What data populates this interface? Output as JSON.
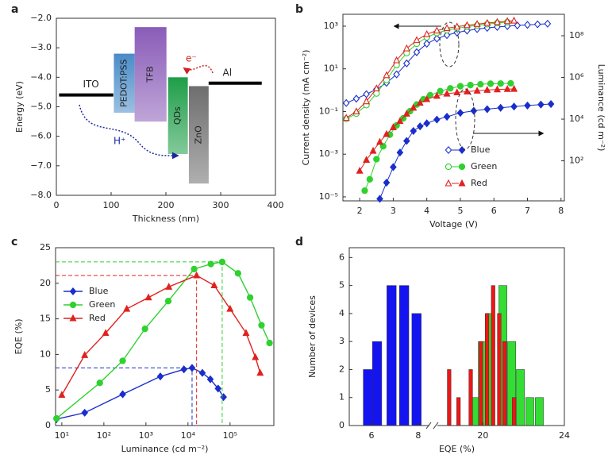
{
  "chart_data": [
    {
      "type": "energy-diagram",
      "panel": "a",
      "xlabel": "Thickness (nm)",
      "ylabel": "Energy (eV)",
      "xlim": [
        0,
        400
      ],
      "xticks": [
        0,
        100,
        200,
        300,
        400
      ],
      "ylim": [
        -8,
        -2
      ],
      "yticks": [
        {
          "value": -8,
          "label": "−8.0"
        },
        {
          "value": -7,
          "label": "−7.0"
        },
        {
          "value": -6,
          "label": "−6.0"
        },
        {
          "value": -5,
          "label": "−5.0"
        },
        {
          "value": -4,
          "label": "−4.0"
        },
        {
          "value": -3,
          "label": "−3.0"
        },
        {
          "value": -2,
          "label": "−2.0"
        }
      ],
      "electrodes": [
        {
          "name": "ITO",
          "x": [
            5,
            104
          ],
          "energy": -4.6
        },
        {
          "name": "Al",
          "x": [
            278,
            375
          ],
          "energy": -4.2
        }
      ],
      "layers": [
        {
          "name": "PEDOT:PSS",
          "x": [
            105,
            143
          ],
          "energy": [
            -3.2,
            -5.2
          ],
          "color": "#4a8cc8"
        },
        {
          "name": "TFB",
          "x": [
            143,
            201
          ],
          "energy": [
            -2.3,
            -5.5
          ],
          "color": "#8a5cb8"
        },
        {
          "name": "QDs",
          "x": [
            204,
            240
          ],
          "energy": [
            -4.0,
            -6.6
          ],
          "color": "#1e9e48"
        },
        {
          "name": "ZnO",
          "x": [
            242,
            278
          ],
          "energy": [
            -4.3,
            -7.6
          ],
          "color": "#6e6e6e"
        }
      ],
      "annotations": [
        {
          "text": "e⁻",
          "color": "#d42020"
        },
        {
          "text": "H⁺",
          "color": "#1a2a9c"
        }
      ]
    },
    {
      "type": "dual-axis-line",
      "panel": "b",
      "xlabel": "Voltage (V)",
      "ylabel": "Current density (mA cm⁻²)",
      "y2label": "Luminance (cd m⁻²)",
      "xlim": [
        1.5,
        8.1
      ],
      "xticks": [
        2,
        3,
        4,
        5,
        6,
        7,
        8
      ],
      "yscale": "log",
      "ylim": [
        6.5e-06,
        3600
      ],
      "yticks": [
        {
          "value": 1e-05,
          "label": "10⁻⁵"
        },
        {
          "value": 0.001,
          "label": "10⁻³"
        },
        {
          "value": 0.1,
          "label": "10⁻¹"
        },
        {
          "value": 10,
          "label": "10¹"
        },
        {
          "value": 1000,
          "label": "10³"
        }
      ],
      "y2scale": "log",
      "y2lim": [
        1.2,
        1070000000
      ],
      "y2ticks": [
        {
          "value": 100,
          "label": "10²"
        },
        {
          "value": 10000,
          "label": "10⁴"
        },
        {
          "value": 1000000,
          "label": "10⁶"
        },
        {
          "value": 100000000,
          "label": "10⁸"
        }
      ],
      "legend": "lower right",
      "series": [
        {
          "name": "Blue",
          "color": "#1a2ecc",
          "marker": "diamond",
          "filled": false,
          "x": [
            1.6,
            1.9,
            2.2,
            2.5,
            2.8,
            3.1,
            3.4,
            3.7,
            4.0,
            4.3,
            4.6,
            4.9,
            5.2,
            5.5,
            5.8,
            6.1,
            6.4,
            6.7,
            7.0,
            7.3,
            7.6
          ],
          "values": [
            0.25,
            0.4,
            0.65,
            1.1,
            2.2,
            5.5,
            18,
            60,
            150,
            260,
            380,
            500,
            620,
            730,
            830,
            920,
            1000,
            1080,
            1150,
            1220,
            1300
          ]
        },
        {
          "name": "Green",
          "color": "#2fd12f",
          "marker": "circle",
          "filled": false,
          "x": [
            1.6,
            1.9,
            2.2,
            2.5,
            2.8,
            3.1,
            3.4,
            3.7,
            4.0,
            4.3,
            4.6,
            4.9,
            5.2,
            5.5,
            5.8,
            6.1,
            6.4
          ],
          "values": [
            0.045,
            0.08,
            0.2,
            0.7,
            3,
            15,
            55,
            150,
            300,
            480,
            650,
            800,
            950,
            1100,
            1250,
            1400,
            1550
          ]
        },
        {
          "name": "Red",
          "color": "#e0221e",
          "marker": "triangle",
          "filled": false,
          "x": [
            1.6,
            1.9,
            2.2,
            2.5,
            2.8,
            3.1,
            3.4,
            3.7,
            4.0,
            4.3,
            4.6,
            4.9,
            5.2,
            5.5,
            5.8,
            6.1,
            6.4,
            6.6
          ],
          "values": [
            0.05,
            0.1,
            0.3,
            1.2,
            5,
            25,
            90,
            220,
            420,
            620,
            800,
            950,
            1100,
            1250,
            1400,
            1550,
            1700,
            1800
          ]
        },
        {
          "axis": "y2",
          "color": "#1a2ecc",
          "marker": "diamond",
          "filled": true,
          "x": [
            2.6,
            2.8,
            3.0,
            3.2,
            3.4,
            3.6,
            3.8,
            4.0,
            4.3,
            4.6,
            5.0,
            5.4,
            5.8,
            6.2,
            6.6,
            7.0,
            7.4,
            7.7
          ],
          "values": [
            1.5,
            9,
            50,
            250,
            900,
            2700,
            4500,
            6300,
            9500,
            13000,
            20000,
            25000,
            30000,
            35000,
            40000,
            45000,
            50000,
            53000
          ]
        },
        {
          "axis": "y2",
          "color": "#2fd12f",
          "marker": "circle",
          "filled": true,
          "x": [
            2.15,
            2.3,
            2.5,
            2.7,
            2.9,
            3.1,
            3.3,
            3.5,
            3.7,
            3.9,
            4.1,
            4.4,
            4.7,
            5.0,
            5.3,
            5.6,
            5.9,
            6.2,
            6.5
          ],
          "values": [
            3.7,
            13,
            120,
            500,
            1800,
            5000,
            11000,
            24000,
            50000,
            90000,
            140000,
            220000,
            300000,
            380000,
            430000,
            470000,
            500000,
            510000,
            520000
          ]
        },
        {
          "axis": "y2",
          "color": "#e0221e",
          "marker": "triangle",
          "filled": true,
          "x": [
            2.0,
            2.2,
            2.4,
            2.6,
            2.8,
            3.0,
            3.2,
            3.4,
            3.6,
            3.8,
            4.0,
            4.3,
            4.6,
            4.9,
            5.2,
            5.5,
            5.8,
            6.1,
            6.4,
            6.6
          ],
          "values": [
            33,
            110,
            300,
            800,
            1900,
            4000,
            8000,
            18000,
            35000,
            60000,
            90000,
            130000,
            165000,
            190000,
            210000,
            230000,
            250000,
            265000,
            275000,
            280000
          ]
        }
      ]
    },
    {
      "type": "line",
      "panel": "c",
      "xlabel": "Luminance (cd m⁻²)",
      "ylabel": "EQE (%)",
      "xscale": "log",
      "xlim": [
        7.1,
        1100000
      ],
      "xticks": [
        {
          "value": 10,
          "label": "10¹"
        },
        {
          "value": 100,
          "label": "10²"
        },
        {
          "value": 1000,
          "label": "10³"
        },
        {
          "value": 10000,
          "label": "10⁴"
        },
        {
          "value": 100000,
          "label": "10⁵"
        }
      ],
      "ylim": [
        0,
        25
      ],
      "yticks": [
        0,
        5,
        10,
        15,
        20,
        25
      ],
      "legend": "upper left",
      "peak_guides": true,
      "series": [
        {
          "name": "Blue",
          "color": "#1a2ecc",
          "marker": "diamond",
          "x": [
            7.5,
            35,
            280,
            2200,
            8000,
            12500,
            22000,
            34000,
            52000,
            70000
          ],
          "values": [
            0.9,
            1.8,
            4.4,
            6.9,
            7.9,
            8.1,
            7.4,
            6.5,
            5.2,
            4.0
          ]
        },
        {
          "name": "Green",
          "color": "#2fd12f",
          "marker": "circle",
          "x": [
            7.5,
            80,
            280,
            950,
            3400,
            14000,
            35000,
            65000,
            155000,
            300000,
            560000,
            870000
          ],
          "values": [
            1.0,
            6.0,
            9.1,
            13.6,
            17.5,
            22.0,
            22.7,
            23.0,
            21.4,
            18.0,
            14.1,
            11.6
          ]
        },
        {
          "name": "Red",
          "color": "#e0221e",
          "marker": "triangle",
          "x": [
            10,
            35,
            110,
            350,
            1150,
            3500,
            16000,
            42000,
            100000,
            240000,
            400000,
            520000
          ],
          "values": [
            4.3,
            9.9,
            13.0,
            16.4,
            18.0,
            19.5,
            21.1,
            19.7,
            16.4,
            13.0,
            9.6,
            7.4
          ]
        }
      ]
    },
    {
      "type": "bar",
      "panel": "d",
      "xlabel": "EQE (%)",
      "ylabel": "Number of devices",
      "xsegments": [
        {
          "xlim": [
            5.05,
            8.55
          ],
          "xticks": [
            6,
            8
          ]
        },
        {
          "xlim": [
            17.8,
            24
          ],
          "xticks": [
            20,
            24
          ]
        }
      ],
      "ylim": [
        0,
        6.35
      ],
      "yticks": [
        0,
        1,
        2,
        3,
        4,
        5,
        6
      ],
      "series": [
        {
          "color": "#1414f0",
          "width": 0.4,
          "x": [
            5.85,
            6.24,
            6.86,
            7.4,
            7.93
          ],
          "values": [
            2,
            3,
            5,
            5,
            4
          ]
        },
        {
          "color": "#33dd33",
          "width": 0.4,
          "x": [
            19.66,
            19.97,
            20.36,
            20.98,
            21.41,
            21.84,
            22.3,
            22.77
          ],
          "values": [
            1,
            3,
            4,
            5,
            3,
            2,
            1,
            1
          ]
        },
        {
          "color": "#f01414",
          "width": 0.18,
          "x": [
            18.34,
            18.8,
            19.4,
            19.9,
            20.2,
            20.5,
            20.8,
            21.06,
            21.53
          ],
          "values": [
            2,
            1,
            2,
            3,
            4,
            5,
            4,
            3,
            1
          ]
        }
      ]
    }
  ]
}
